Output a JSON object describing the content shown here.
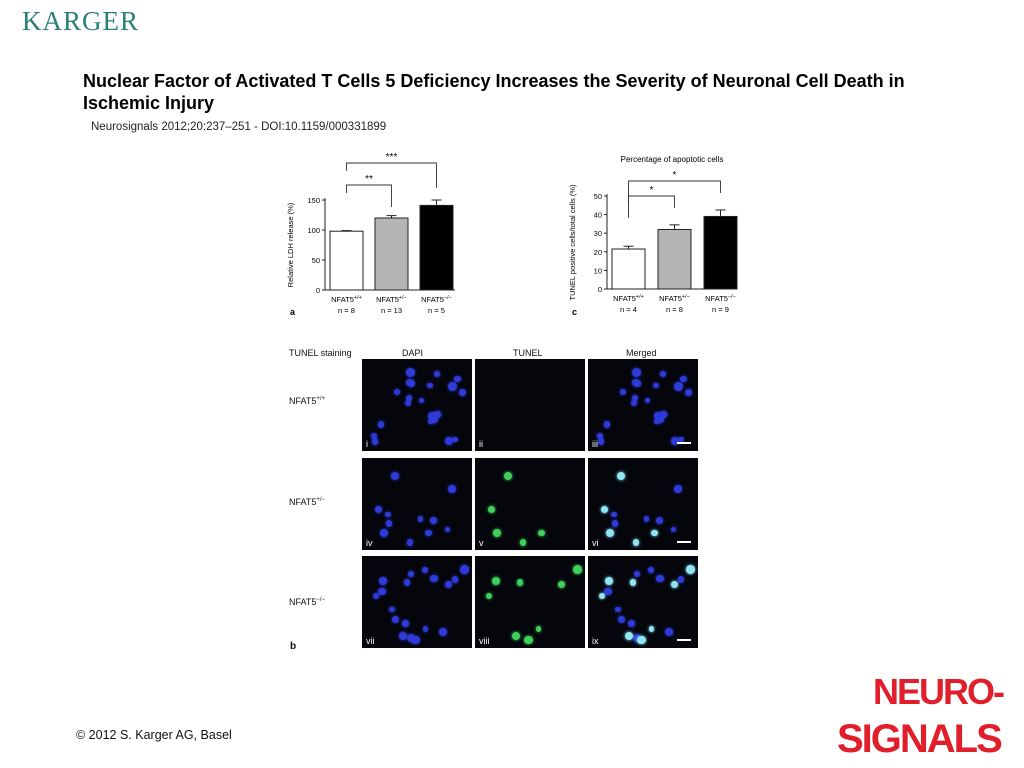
{
  "header": {
    "brand": "KARGER"
  },
  "title": "Nuclear Factor of Activated T Cells 5 Deficiency Increases the Severity of Neuronal Cell Death in Ischemic Injury",
  "citation": "Neurosignals 2012;20:237–251 - DOI:10.1159/000331899",
  "footer": {
    "copyright": "© 2012 S. Karger AG, Basel"
  },
  "journal_logo": {
    "line1": "NEURO-",
    "line2": "SIGNALS"
  },
  "chart_data": [
    {
      "type": "bar",
      "panel": "a",
      "title": "",
      "ylabel": "Relative LDH release (%)",
      "ylim": [
        0,
        150
      ],
      "yticks": [
        0,
        50,
        100,
        150
      ],
      "categories": [
        "NFAT5+/+",
        "NFAT5+/−",
        "NFAT5−/−"
      ],
      "n_labels": [
        "n = 8",
        "n = 13",
        "n = 5"
      ],
      "values": [
        98,
        120,
        141
      ],
      "errors": [
        1,
        4,
        9
      ],
      "colors": [
        "#ffffff",
        "#b5b5b5",
        "#000000"
      ],
      "significance": [
        {
          "from": 0,
          "to": 1,
          "label": "**"
        },
        {
          "from": 0,
          "to": 2,
          "label": "***"
        }
      ]
    },
    {
      "type": "bar",
      "panel": "c",
      "title": "Percentage of apoptotic cells",
      "ylabel": "TUNEL positive cells/total cells (%)",
      "ylim": [
        0,
        50
      ],
      "yticks": [
        0,
        10,
        20,
        30,
        40,
        50
      ],
      "categories": [
        "NFAT5+/+",
        "NFAT5+/−",
        "NFAT5−/−"
      ],
      "n_labels": [
        "n = 4",
        "n = 8",
        "n = 9"
      ],
      "values": [
        21.5,
        32,
        39
      ],
      "errors": [
        1.5,
        2.5,
        3.5
      ],
      "colors": [
        "#ffffff",
        "#b5b5b5",
        "#000000"
      ],
      "significance": [
        {
          "from": 0,
          "to": 1,
          "label": "*"
        },
        {
          "from": 0,
          "to": 2,
          "label": "*"
        }
      ]
    }
  ],
  "micrographs": {
    "panel_label": "b",
    "stain_label": "TUNEL staining",
    "columns": [
      "DAPI",
      "TUNEL",
      "Merged"
    ],
    "rows": [
      "NFAT5+/+",
      "NFAT5+/−",
      "NFAT5−/−"
    ],
    "panel_labels": [
      "i",
      "ii",
      "iii",
      "iv",
      "v",
      "vi",
      "vii",
      "viii",
      "ix"
    ]
  }
}
